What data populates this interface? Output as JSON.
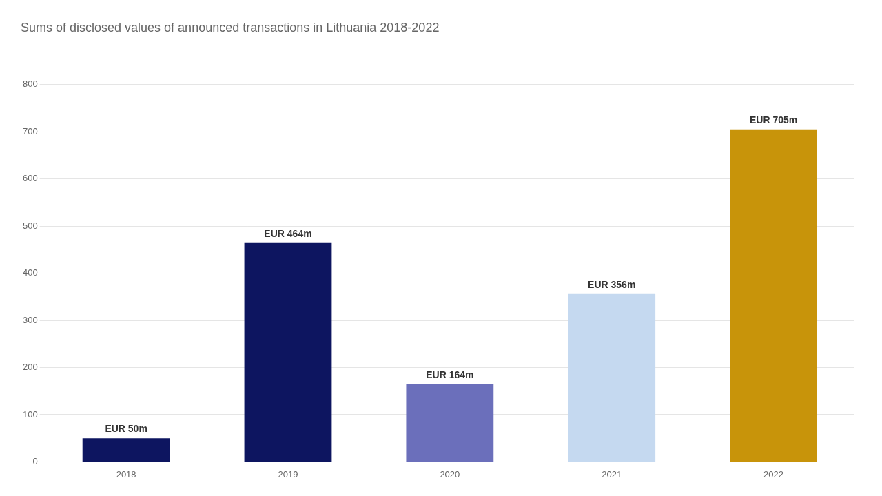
{
  "chart_data": {
    "type": "bar",
    "title": "Sums of disclosed values of announced transactions in Lithuania 2018-2022",
    "categories": [
      "2018",
      "2019",
      "2020",
      "2021",
      "2022"
    ],
    "values": [
      50,
      464,
      164,
      356,
      705
    ],
    "value_labels": [
      "EUR 50m",
      "EUR 464m",
      "EUR 164m",
      "EUR 356m",
      "EUR 705m"
    ],
    "data_labels": true,
    "colors": [
      "#0d1560",
      "#0d1560",
      "#6b6fbb",
      "#c5d9f0",
      "#c8940a"
    ],
    "ylim": [
      0,
      860
    ],
    "yticks": [
      0,
      100,
      200,
      300,
      400,
      500,
      600,
      700,
      800
    ],
    "grid": true
  }
}
